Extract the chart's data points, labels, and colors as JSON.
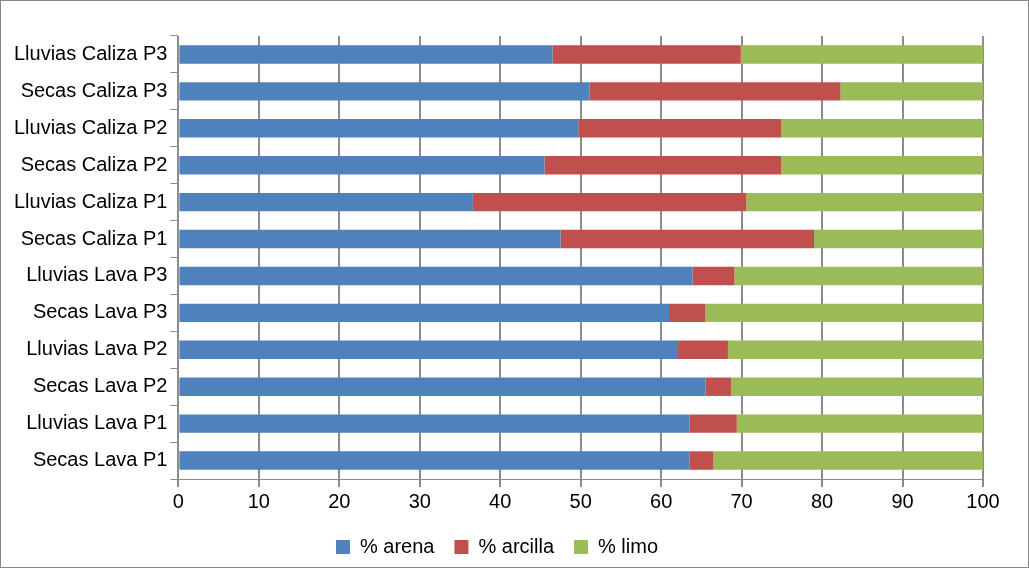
{
  "chart_data": {
    "type": "bar",
    "orientation": "horizontal",
    "stacked": true,
    "categories": [
      "Lluvias Caliza P3",
      "Secas Caliza P3",
      "Lluvias Caliza P2",
      "Secas Caliza P2",
      "Lluvias Caliza P1",
      "Secas Caliza P1",
      "Lluvias Lava P3",
      "Secas Lava P3",
      "Lluvias Lava P2",
      "Secas Lava P2",
      "Lluvias Lava P1",
      "Secas Lava P1"
    ],
    "series": [
      {
        "name": "% arena",
        "color": "#4f81bd",
        "values": [
          46.5,
          51.1,
          49.7,
          45.5,
          36.6,
          47.5,
          63.9,
          61.1,
          62.1,
          65.5,
          63.5,
          63.5
        ]
      },
      {
        "name": "% arcilla",
        "color": "#c0504d",
        "values": [
          23.4,
          31.2,
          25.2,
          29.4,
          34.0,
          31.5,
          5.2,
          4.4,
          6.2,
          3.2,
          5.9,
          3.0
        ]
      },
      {
        "name": "% limo",
        "color": "#9bbb59",
        "values": [
          30.1,
          17.7,
          25.1,
          25.1,
          29.4,
          21.0,
          30.9,
          34.5,
          31.7,
          31.3,
          30.6,
          33.5
        ]
      }
    ],
    "xlim": [
      0,
      100
    ],
    "xticks": [
      0,
      10,
      20,
      30,
      40,
      50,
      60,
      70,
      80,
      90,
      100
    ],
    "grid": "x",
    "legend": "bottom"
  }
}
